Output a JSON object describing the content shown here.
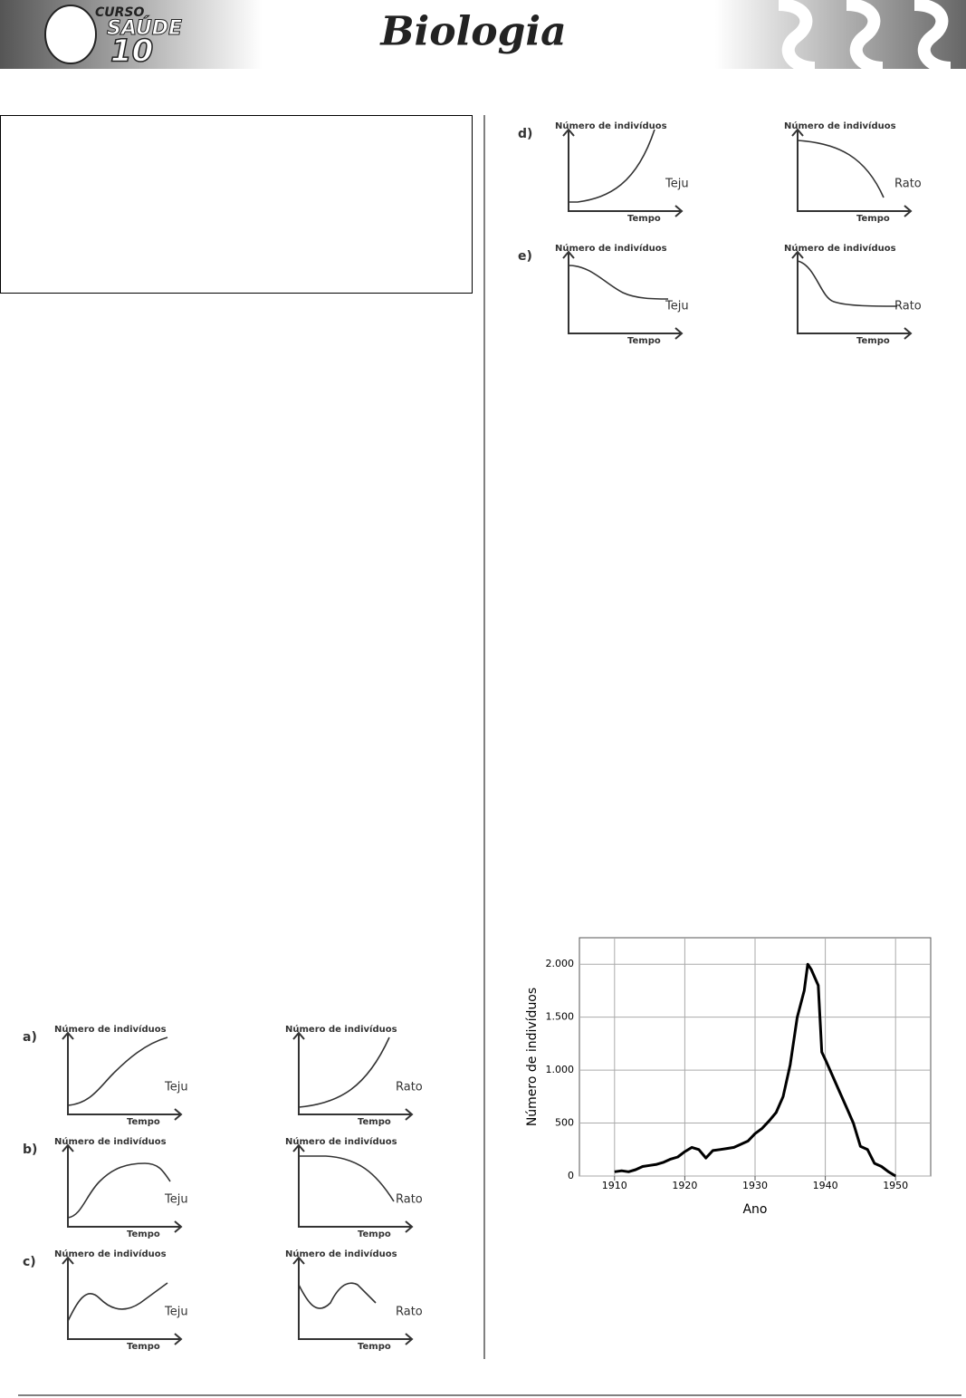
{
  "header": {
    "logo": [
      "CURSO",
      "SAÚDE",
      "10"
    ],
    "title": "Biologia"
  },
  "options": [
    {
      "letter": "a)",
      "graphs": [
        {
          "y_label": "Número de indivíduos",
          "x_label": "Tempo",
          "species": "Teju"
        },
        {
          "y_label": "Número de indivíduos",
          "x_label": "Tempo",
          "species": "Rato"
        }
      ]
    },
    {
      "letter": "b)",
      "graphs": [
        {
          "y_label": "Número de indivíduos",
          "x_label": "Tempo",
          "species": "Teju"
        },
        {
          "y_label": "Número de indivíduos",
          "x_label": "Tempo",
          "species": "Rato"
        }
      ]
    },
    {
      "letter": "c)",
      "graphs": [
        {
          "y_label": "Número de indivíduos",
          "x_label": "Tempo",
          "species": "Teju"
        },
        {
          "y_label": "Número de indivíduos",
          "x_label": "Tempo",
          "species": "Rato"
        }
      ]
    },
    {
      "letter": "d)",
      "graphs": [
        {
          "y_label": "Número de indivíduos",
          "x_label": "Tempo",
          "species": "Teju"
        },
        {
          "y_label": "Número de indivíduos",
          "x_label": "Tempo",
          "species": "Rato"
        }
      ]
    },
    {
      "letter": "e)",
      "graphs": [
        {
          "y_label": "Número de indivíduos",
          "x_label": "Tempo",
          "species": "Teju"
        },
        {
          "y_label": "Número de indivíduos",
          "x_label": "Tempo",
          "species": "Rato"
        }
      ]
    }
  ],
  "chart_data": {
    "type": "line",
    "x_label": "Ano",
    "y_label": "Número de indivíduos",
    "color": "#000000",
    "grid": true,
    "x": [
      1910,
      1911,
      1912,
      1913,
      1914,
      1915,
      1916,
      1917,
      1918,
      1919,
      1920,
      1921,
      1922,
      1923,
      1924,
      1925,
      1926,
      1927,
      1928,
      1929,
      1930,
      1931,
      1932,
      1933,
      1934,
      1935,
      1936,
      1937,
      1937.5,
      1938,
      1939,
      1939.5,
      1940,
      1941,
      1942,
      1943,
      1944,
      1945,
      1946,
      1947,
      1948,
      1949,
      1950
    ],
    "values": [
      40,
      50,
      40,
      60,
      90,
      100,
      110,
      130,
      160,
      180,
      230,
      270,
      250,
      170,
      240,
      250,
      260,
      270,
      300,
      330,
      400,
      450,
      520,
      600,
      750,
      1050,
      1500,
      1750,
      2000,
      1950,
      1800,
      1170,
      1100,
      950,
      800,
      650,
      500,
      280,
      250,
      120,
      90,
      40,
      0
    ],
    "xlim": [
      1905,
      1955
    ],
    "xticks": [
      1910,
      1920,
      1930,
      1940,
      1950
    ],
    "ylim": [
      0,
      2250
    ],
    "yticks": [
      0,
      500,
      {
        "value": 1000,
        "label": "1.000"
      },
      {
        "value": 1500,
        "label": "1.500"
      },
      {
        "value": 2000,
        "label": "2.000"
      }
    ]
  }
}
